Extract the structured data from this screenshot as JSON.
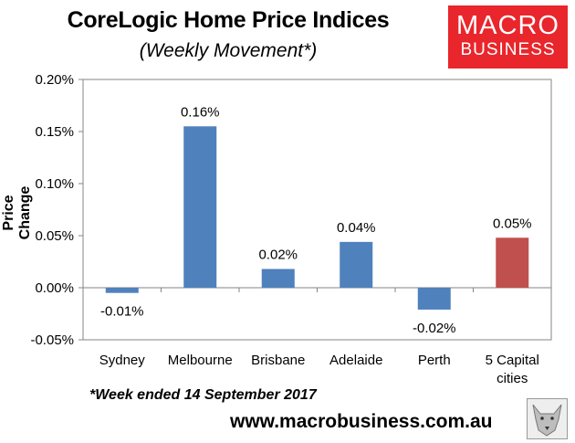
{
  "header": {
    "title": "CoreLogic Home Price Indices",
    "subtitle": "(Weekly Movement*)"
  },
  "logo": {
    "line1": "MACRO",
    "line2": "BUSINESS"
  },
  "footer": {
    "footnote": "*Week ended 14 September 2017",
    "website": "www.macrobusiness.com.au"
  },
  "chart_data": {
    "type": "bar",
    "title": "CoreLogic Home Price Indices",
    "subtitle": "(Weekly Movement*)",
    "ylabel": "Price Change",
    "xlabel": "",
    "ylim": [
      -0.05,
      0.2
    ],
    "yticks": [
      -0.05,
      0.0,
      0.05,
      0.1,
      0.15,
      0.2
    ],
    "ytick_labels": [
      "-0.05%",
      "0.00%",
      "0.05%",
      "0.10%",
      "0.15%",
      "0.20%"
    ],
    "categories": [
      [
        "Sydney"
      ],
      [
        "Melbourne"
      ],
      [
        "Brisbane"
      ],
      [
        "Adelaide"
      ],
      [
        "Perth"
      ],
      [
        "5 Capital",
        "cities"
      ]
    ],
    "values": [
      -0.005,
      0.155,
      0.018,
      0.044,
      -0.021,
      0.048
    ],
    "data_labels": [
      "-0.01%",
      "0.16%",
      "0.02%",
      "0.04%",
      "-0.02%",
      "0.05%"
    ],
    "colors": [
      "#4f81bd",
      "#4f81bd",
      "#4f81bd",
      "#4f81bd",
      "#4f81bd",
      "#c0504d"
    ],
    "grid": false,
    "legend": "none"
  }
}
